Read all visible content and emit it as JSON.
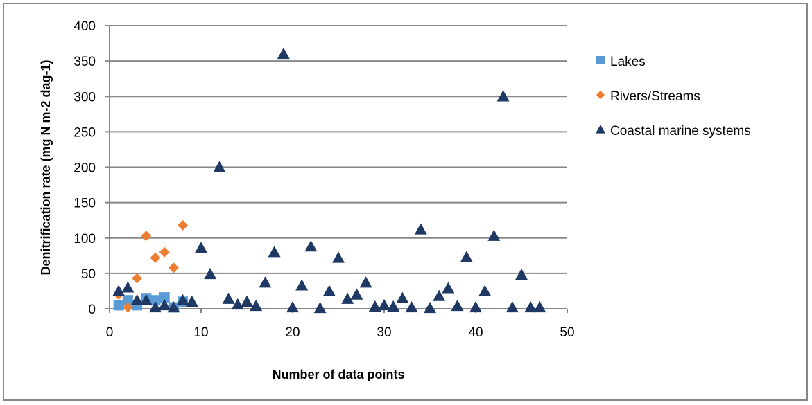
{
  "chart_data": {
    "type": "scatter",
    "title": "",
    "xlabel": "Number of data points",
    "ylabel": "Denitrification rate (mg N m-2 dag-1)",
    "xlim": [
      0,
      50
    ],
    "ylim": [
      0,
      400
    ],
    "xticks": [
      "0",
      "10",
      "20",
      "30",
      "40",
      "50"
    ],
    "yticks": [
      "0",
      "50",
      "100",
      "150",
      "200",
      "250",
      "300",
      "350",
      "400"
    ],
    "grid": "horizontal",
    "legend_position": "right",
    "series": [
      {
        "name": "Lakes",
        "marker": "square",
        "color": "#5b9bd5",
        "points": [
          [
            1,
            5
          ],
          [
            2,
            12
          ],
          [
            3,
            5
          ],
          [
            4,
            15
          ],
          [
            5,
            12
          ],
          [
            6,
            16
          ],
          [
            7,
            2
          ],
          [
            8,
            10
          ]
        ]
      },
      {
        "name": "Rivers/Streams",
        "marker": "diamond",
        "color": "#ed7d31",
        "points": [
          [
            1,
            20
          ],
          [
            2,
            2
          ],
          [
            3,
            43
          ],
          [
            4,
            103
          ],
          [
            5,
            72
          ],
          [
            6,
            80
          ],
          [
            7,
            58
          ],
          [
            8,
            118
          ]
        ]
      },
      {
        "name": "Coastal marine systems",
        "marker": "triangle",
        "color": "#1f3864",
        "points": [
          [
            1,
            25
          ],
          [
            2,
            30
          ],
          [
            3,
            12
          ],
          [
            4,
            12
          ],
          [
            5,
            2
          ],
          [
            6,
            5
          ],
          [
            7,
            2
          ],
          [
            8,
            12
          ],
          [
            9,
            10
          ],
          [
            10,
            86
          ],
          [
            11,
            49
          ],
          [
            12,
            200
          ],
          [
            13,
            14
          ],
          [
            14,
            6
          ],
          [
            15,
            10
          ],
          [
            16,
            4
          ],
          [
            17,
            37
          ],
          [
            18,
            80
          ],
          [
            19,
            360
          ],
          [
            20,
            2
          ],
          [
            21,
            33
          ],
          [
            22,
            88
          ],
          [
            23,
            1
          ],
          [
            24,
            25
          ],
          [
            25,
            72
          ],
          [
            26,
            14
          ],
          [
            27,
            20
          ],
          [
            28,
            37
          ],
          [
            29,
            3
          ],
          [
            30,
            5
          ],
          [
            31,
            3
          ],
          [
            32,
            15
          ],
          [
            33,
            2
          ],
          [
            34,
            112
          ],
          [
            35,
            1
          ],
          [
            36,
            18
          ],
          [
            37,
            29
          ],
          [
            38,
            4
          ],
          [
            39,
            73
          ],
          [
            40,
            2
          ],
          [
            41,
            25
          ],
          [
            42,
            103
          ],
          [
            43,
            300
          ],
          [
            44,
            2
          ],
          [
            45,
            48
          ],
          [
            46,
            2
          ],
          [
            47,
            2
          ]
        ]
      }
    ]
  }
}
